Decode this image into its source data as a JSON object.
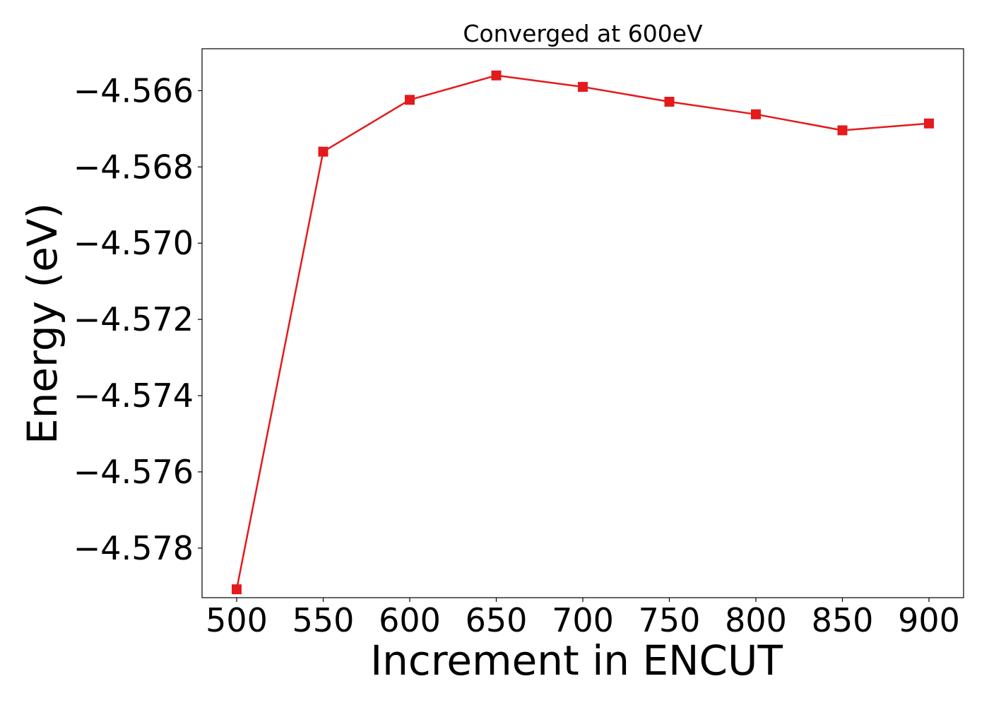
{
  "chart_data": {
    "type": "line",
    "title": "Converged at 600eV",
    "xlabel": "Increment in ENCUT",
    "ylabel": "Energy (eV)",
    "x": [
      500,
      550,
      600,
      650,
      700,
      750,
      800,
      850,
      900
    ],
    "series": [
      {
        "values": [
          -4.57908,
          -4.5676,
          -4.56624,
          -4.5656,
          -4.5659,
          -4.56629,
          -4.56662,
          -4.56704,
          -4.56686
        ],
        "color": "#e41a1c",
        "marker": "square"
      }
    ],
    "xticks": [
      500,
      550,
      600,
      650,
      700,
      750,
      800,
      850,
      900
    ],
    "xtick_labels": [
      "500",
      "550",
      "600",
      "650",
      "700",
      "750",
      "800",
      "850",
      "900"
    ],
    "yticks": [
      -4.578,
      -4.576,
      -4.574,
      -4.572,
      -4.57,
      -4.568,
      -4.566
    ],
    "ytick_labels": [
      "−4.578",
      "−4.576",
      "−4.574",
      "−4.572",
      "−4.570",
      "−4.568",
      "−4.566"
    ],
    "xlim": [
      480,
      920
    ],
    "ylim": [
      -4.5793,
      -4.5649
    ],
    "grid": false,
    "legend": "none"
  }
}
